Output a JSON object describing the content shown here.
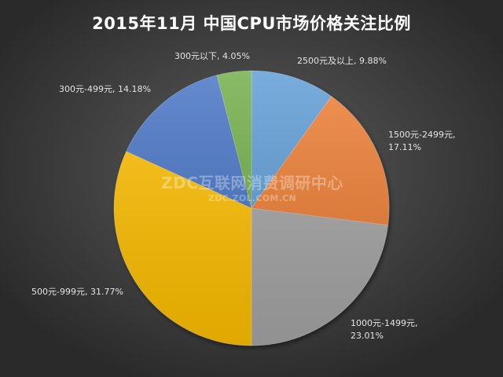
{
  "chart_data": {
    "type": "pie",
    "title": "2015年11月  中国CPU市场价格关注比例",
    "slices": [
      {
        "label": "2500元及以上, 9.88%",
        "category": "2500元及以上",
        "value": 9.88,
        "color": "#5b9bd5"
      },
      {
        "label": "1500元-2499元,\n17.11%",
        "category": "1500元-2499元",
        "value": 17.11,
        "color": "#ed7d31"
      },
      {
        "label": "1000元-1499元,\n23.01%",
        "category": "1000元-1499元",
        "value": 23.01,
        "color": "#a5a5a5"
      },
      {
        "label": "500元-999元, 31.77%",
        "category": "500元-999元",
        "value": 31.77,
        "color": "#ffc000"
      },
      {
        "label": "300元-499元, 14.18%",
        "category": "300元-499元",
        "value": 14.18,
        "color": "#4472c4"
      },
      {
        "label": "300元以下, 4.05%",
        "category": "300元以下",
        "value": 4.05,
        "color": "#70ad47"
      }
    ],
    "start_angle": "12 o'clock, clockwise",
    "legend": "none"
  },
  "watermark": {
    "main": "ZDC互联网消费调研中心",
    "sub": "ZDC.ZOL.COM.CN"
  }
}
